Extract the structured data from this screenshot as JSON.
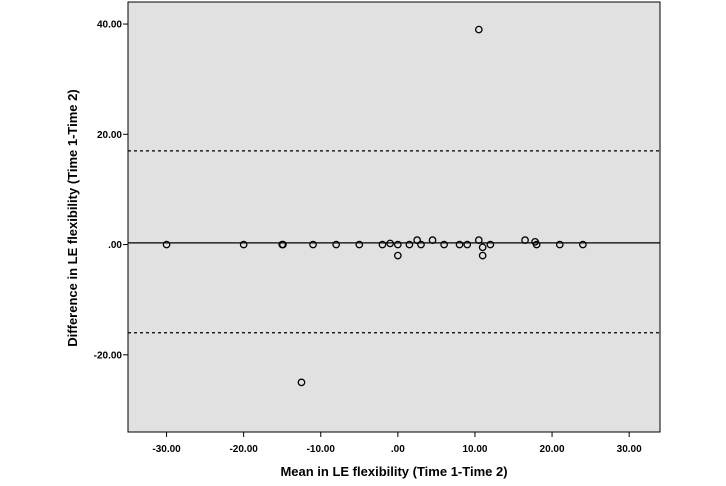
{
  "chart_data": {
    "type": "scatter",
    "title": "",
    "xlabel": "Mean in LE flexibility (Time 1-Time 2)",
    "ylabel": "Difference in LE flexibility (Time 1-Time 2)",
    "xlim": [
      -35,
      34
    ],
    "ylim": [
      -34,
      44
    ],
    "x_ticks": [
      -30,
      -20,
      -10,
      0,
      10,
      20,
      30
    ],
    "x_tick_labels": [
      "-30.00",
      "-20.00",
      "-10.00",
      ".00",
      "10.00",
      "20.00",
      "30.00"
    ],
    "y_ticks": [
      -20,
      0,
      20,
      40
    ],
    "y_tick_labels": [
      "-20.00",
      ".00",
      "20.00",
      "40.00"
    ],
    "grid": false,
    "plot_background": "#e1e1e1",
    "reference_lines": [
      {
        "y": 0.3,
        "style": "solid"
      },
      {
        "y": 17.0,
        "style": "dotted"
      },
      {
        "y": -16.0,
        "style": "dotted"
      }
    ],
    "points": [
      {
        "x": -30.0,
        "y": 0.0
      },
      {
        "x": -20.0,
        "y": 0.0
      },
      {
        "x": -15.0,
        "y": 0.0
      },
      {
        "x": -14.9,
        "y": 0.0
      },
      {
        "x": -12.5,
        "y": -25.0
      },
      {
        "x": -11.0,
        "y": 0.0
      },
      {
        "x": -8.0,
        "y": 0.0
      },
      {
        "x": -5.0,
        "y": 0.0
      },
      {
        "x": -2.0,
        "y": 0.0
      },
      {
        "x": -1.0,
        "y": 0.2
      },
      {
        "x": 0.0,
        "y": 0.0
      },
      {
        "x": 0.0,
        "y": -2.0
      },
      {
        "x": 1.5,
        "y": 0.0
      },
      {
        "x": 2.5,
        "y": 0.8
      },
      {
        "x": 3.0,
        "y": 0.0
      },
      {
        "x": 4.5,
        "y": 0.8
      },
      {
        "x": 6.0,
        "y": 0.0
      },
      {
        "x": 8.0,
        "y": 0.0
      },
      {
        "x": 9.0,
        "y": 0.0
      },
      {
        "x": 10.5,
        "y": 39.0
      },
      {
        "x": 10.5,
        "y": 0.8
      },
      {
        "x": 11.0,
        "y": -0.5
      },
      {
        "x": 11.0,
        "y": -2.0
      },
      {
        "x": 12.0,
        "y": 0.0
      },
      {
        "x": 16.5,
        "y": 0.8
      },
      {
        "x": 17.8,
        "y": 0.5
      },
      {
        "x": 18.0,
        "y": 0.0
      },
      {
        "x": 21.0,
        "y": 0.0
      },
      {
        "x": 24.0,
        "y": 0.0
      }
    ]
  }
}
